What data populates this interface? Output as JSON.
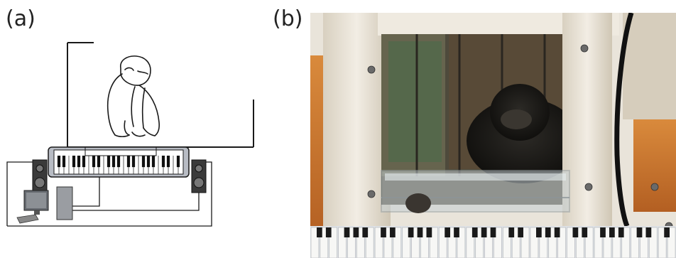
{
  "panels": {
    "a": {
      "label": "(a)"
    },
    "b": {
      "label": "(b)"
    }
  },
  "colors": {
    "line": "#1a1a1a",
    "keyboard_body": "#b8bcc4",
    "speaker": "#3a3a3a",
    "monitor": "#666a70",
    "tower": "#9a9da2",
    "booth_frame": "#e6e0d4",
    "booth_shadow": "#b8ad98",
    "orange_wall": "#c8752e",
    "window_glass": "#4a4a3a"
  },
  "icons": {
    "chimpanzee": "chimpanzee-outline-icon",
    "keyboard": "piano-keyboard-icon",
    "speaker": "loudspeaker-icon",
    "computer": "desktop-computer-icon"
  }
}
